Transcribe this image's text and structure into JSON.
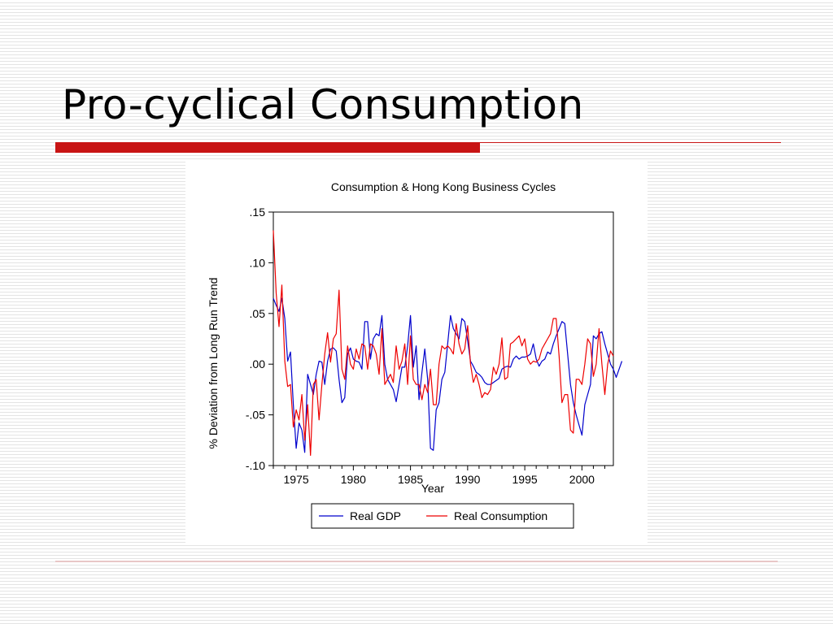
{
  "slide": {
    "title": "Pro-cyclical Consumption"
  },
  "colors": {
    "accent_red": "#c81414",
    "gdp_line": "#0000cc",
    "consumption_line": "#ee0000"
  },
  "chart_data": {
    "type": "line",
    "title": "Consumption & Hong Kong Business Cycles",
    "xlabel": "Year",
    "ylabel": "% Deviation from Long Run Trend",
    "xlim": [
      1973.0,
      2002.75
    ],
    "ylim": [
      -0.1,
      0.15
    ],
    "x_start": 1973.0,
    "x_step": 0.25,
    "xticks": [
      1975,
      1980,
      1985,
      1990,
      1995,
      2000
    ],
    "yticks": [
      {
        "value": 0.15,
        "label": ".15"
      },
      {
        "value": 0.1,
        "label": ".10"
      },
      {
        "value": 0.05,
        "label": ".05"
      },
      {
        "value": 0.0,
        "label": ".00"
      },
      {
        "value": -0.05,
        "label": "-.05"
      },
      {
        "value": -0.1,
        "label": "-.10"
      }
    ],
    "grid": false,
    "legend": "bottom-center",
    "series": [
      {
        "name": "Real GDP",
        "color": "#0000cc",
        "values": [
          0.065,
          0.058,
          0.052,
          0.065,
          0.045,
          0.003,
          0.012,
          -0.04,
          -0.083,
          -0.058,
          -0.065,
          -0.087,
          -0.01,
          -0.02,
          -0.03,
          -0.01,
          0.003,
          0.002,
          -0.02,
          0.003,
          0.015,
          0.016,
          0.013,
          -0.015,
          -0.038,
          -0.033,
          0.01,
          0.016,
          0.005,
          0.003,
          0.002,
          -0.005,
          0.042,
          0.042,
          0.005,
          0.025,
          0.03,
          0.028,
          0.048,
          0.0,
          -0.015,
          -0.02,
          -0.025,
          -0.037,
          -0.02,
          -0.003,
          -0.003,
          0.018,
          0.048,
          -0.003,
          0.018,
          -0.035,
          -0.008,
          0.015,
          -0.015,
          -0.083,
          -0.085,
          -0.045,
          -0.038,
          -0.015,
          -0.008,
          0.02,
          0.048,
          0.035,
          0.03,
          0.025,
          0.045,
          0.042,
          0.023,
          0.003,
          -0.002,
          -0.008,
          -0.01,
          -0.013,
          -0.018,
          -0.02,
          -0.02,
          -0.018,
          -0.016,
          -0.014,
          -0.005,
          -0.003,
          -0.002,
          -0.003,
          0.005,
          0.008,
          0.005,
          0.007,
          0.007,
          0.008,
          0.01,
          0.02,
          0.005,
          -0.002,
          0.003,
          0.005,
          0.012,
          0.01,
          0.02,
          0.028,
          0.035,
          0.042,
          0.04,
          0.01,
          -0.02,
          -0.038,
          -0.05,
          -0.06,
          -0.07,
          -0.04,
          -0.03,
          -0.02,
          0.028,
          0.025,
          0.03,
          0.032,
          0.02,
          0.01,
          0.0,
          -0.005,
          -0.013,
          -0.005,
          0.003
        ]
      },
      {
        "name": "Real Consumption",
        "color": "#ee0000",
        "values": [
          0.132,
          0.07,
          0.037,
          0.078,
          0.003,
          -0.022,
          -0.02,
          -0.062,
          -0.045,
          -0.055,
          -0.03,
          -0.075,
          -0.04,
          -0.09,
          -0.02,
          -0.015,
          -0.055,
          -0.02,
          0.01,
          0.031,
          0.002,
          0.025,
          0.03,
          0.073,
          -0.005,
          -0.015,
          0.018,
          0.0,
          -0.005,
          0.015,
          0.005,
          0.02,
          0.018,
          -0.005,
          0.02,
          0.018,
          0.01,
          -0.01,
          0.035,
          -0.02,
          -0.015,
          -0.01,
          -0.018,
          0.018,
          -0.005,
          0.003,
          0.02,
          -0.02,
          0.028,
          -0.015,
          -0.02,
          -0.02,
          -0.035,
          -0.02,
          -0.028,
          -0.005,
          -0.04,
          -0.04,
          0.0,
          0.018,
          0.015,
          0.018,
          0.015,
          0.01,
          0.04,
          0.02,
          0.01,
          0.015,
          0.038,
          0.0,
          -0.018,
          -0.01,
          -0.02,
          -0.033,
          -0.028,
          -0.03,
          -0.025,
          -0.003,
          -0.01,
          0.0,
          0.026,
          -0.015,
          -0.013,
          0.02,
          0.022,
          0.025,
          0.028,
          0.018,
          0.025,
          0.005,
          0.0,
          0.003,
          0.002,
          0.005,
          0.015,
          0.02,
          0.025,
          0.03,
          0.045,
          0.045,
          0.008,
          -0.038,
          -0.03,
          -0.03,
          -0.065,
          -0.068,
          -0.015,
          -0.015,
          -0.02,
          0.0,
          0.025,
          0.02,
          -0.012,
          0.0,
          0.035,
          0.0,
          -0.03,
          0.0,
          0.013,
          0.008
        ]
      }
    ]
  }
}
